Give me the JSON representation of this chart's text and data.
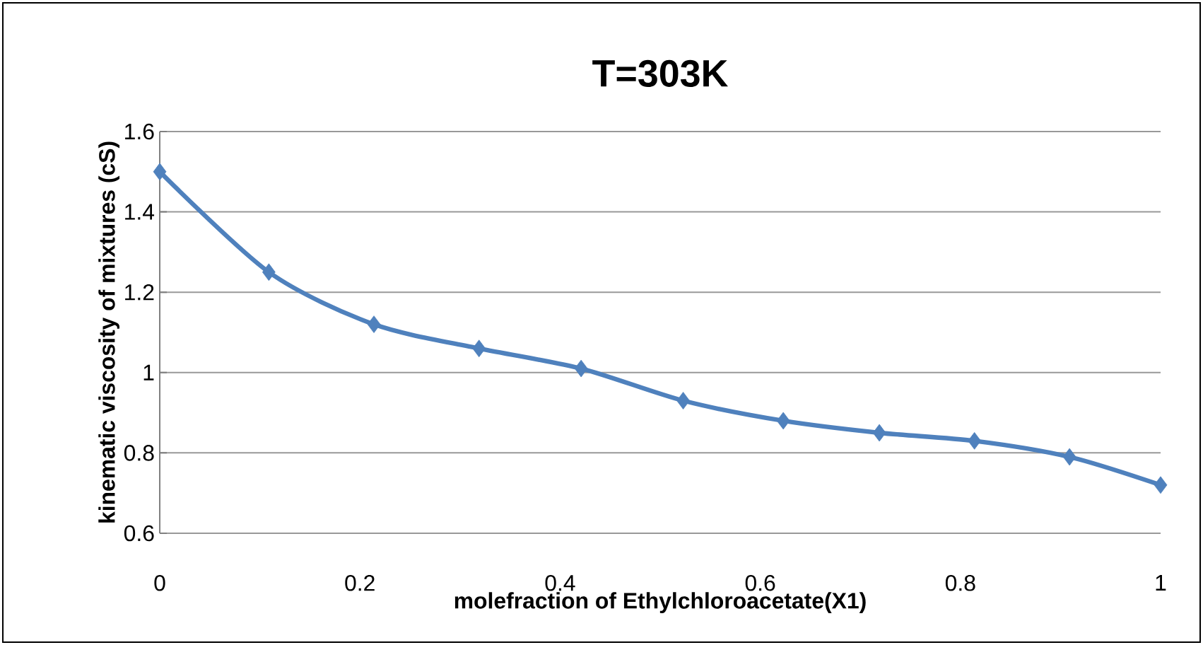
{
  "chart_data": {
    "type": "line",
    "title": "T=303K",
    "xlabel": "molefraction of Ethylchloroacetate(X1)",
    "ylabel": "kinematic viscosity of mixtures  (cS)",
    "x": [
      0,
      0.109,
      0.214,
      0.319,
      0.421,
      0.523,
      0.623,
      0.719,
      0.814,
      0.909,
      1
    ],
    "series": [
      {
        "color": "#4f81bd",
        "values": [
          1.5,
          1.25,
          1.12,
          1.06,
          1.01,
          0.93,
          0.88,
          0.85,
          0.83,
          0.79,
          0.72
        ]
      }
    ],
    "xlim": [
      0,
      1
    ],
    "ylim": [
      0.6,
      1.6
    ],
    "xticks": [
      0,
      0.2,
      0.4,
      0.6,
      0.8,
      1
    ],
    "yticks": [
      0.6,
      0.8,
      1,
      1.2,
      1.4,
      1.6
    ],
    "grid": "y",
    "marker": "diamond",
    "line_style": "solid"
  }
}
